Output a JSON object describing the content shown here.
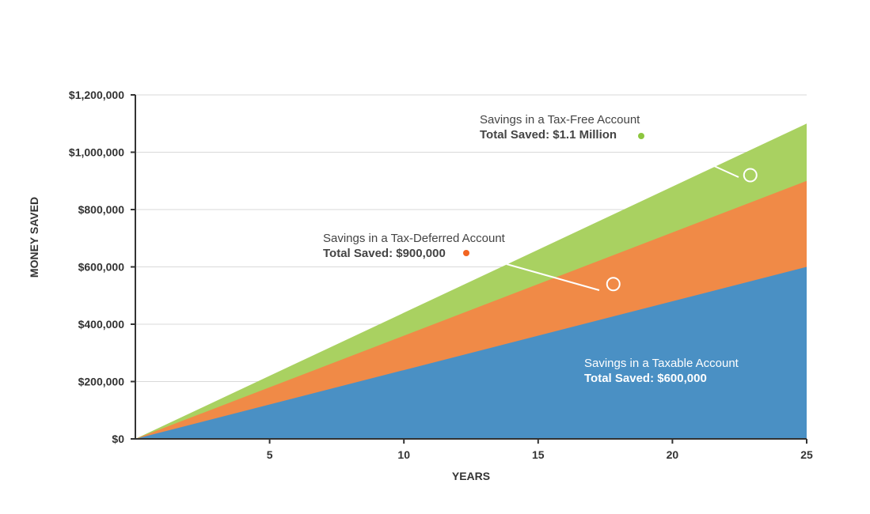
{
  "chart_data": {
    "type": "area",
    "xlabel": "YEARS",
    "ylabel": "MONEY SAVED",
    "xlim": [
      0,
      25
    ],
    "ylim": [
      0,
      1200000
    ],
    "grid": true,
    "x_ticks": [
      "5",
      "10",
      "15",
      "20",
      "25"
    ],
    "x_tick_values": [
      5,
      10,
      15,
      20,
      25
    ],
    "y_ticks": [
      "$0",
      "$200,000",
      "$400,000",
      "$600,000",
      "$800,000",
      "$1,000,000",
      "$1,200,000"
    ],
    "y_tick_values": [
      0,
      200000,
      400000,
      600000,
      800000,
      1000000,
      1200000
    ],
    "x": [
      0,
      25
    ],
    "series": [
      {
        "key": "taxable",
        "values": [
          0,
          600000
        ],
        "color": "#4a90c4"
      },
      {
        "key": "deferred",
        "values": [
          0,
          900000
        ],
        "color": "#f08a47"
      },
      {
        "key": "free",
        "values": [
          0,
          1100000
        ],
        "color": "#a9d161"
      }
    ],
    "annotations": {
      "free": {
        "line1": "Savings in a Tax-Free Account",
        "line2": "Total Saved: $1.1 Million",
        "dot_color": "#8dc63f",
        "marker": [
          22.9,
          920000
        ]
      },
      "deferred": {
        "line1": "Savings in a Tax-Deferred Account",
        "line2": "Total Saved: $900,000",
        "dot_color": "#f26522",
        "marker": [
          17.8,
          540000
        ]
      },
      "taxable": {
        "line1": "Savings in a Taxable Account",
        "line2": "Total Saved: $600,000",
        "text_color": "#ffffff"
      }
    }
  }
}
